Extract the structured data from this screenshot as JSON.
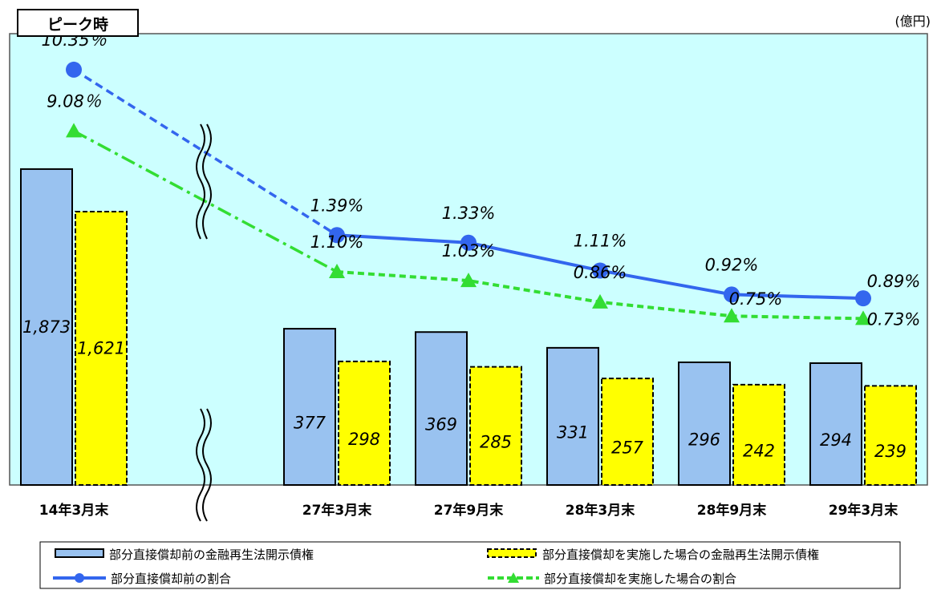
{
  "chart_data": {
    "type": "bar",
    "unit_label": "(億円)",
    "peak_label": "ピーク時",
    "categories": [
      "14年3月末",
      "27年3月末",
      "27年9月末",
      "28年3月末",
      "28年9月末",
      "29年3月末"
    ],
    "bars": [
      {
        "name": "部分直接償却前の金融再生法開示債権",
        "values": [
          1873,
          377,
          369,
          331,
          296,
          294
        ],
        "labels": [
          "1,873",
          "377",
          "369",
          "331",
          "296",
          "294"
        ],
        "color": "#99c2f0"
      },
      {
        "name": "部分直接償却を実施した場合の金融再生法開示債権",
        "values": [
          1621,
          298,
          285,
          257,
          242,
          239
        ],
        "labels": [
          "1,621",
          "298",
          "285",
          "257",
          "242",
          "239"
        ],
        "color": "#ffff00"
      }
    ],
    "lines": [
      {
        "name": "部分直接償却前の割合",
        "values": [
          10.35,
          1.39,
          1.33,
          1.11,
          0.92,
          0.89
        ],
        "labels": [
          "10.35％",
          "1.39%",
          "1.33%",
          "1.11%",
          "0.92%",
          "0.89%"
        ],
        "color": "#3366ee"
      },
      {
        "name": "部分直接償却を実施した場合の割合",
        "values": [
          9.08,
          1.1,
          1.03,
          0.86,
          0.75,
          0.73
        ],
        "labels": [
          "9.08％",
          "1.10%",
          "1.03%",
          "0.86%",
          "0.75%",
          "0.73%"
        ],
        "color": "#33dd33"
      }
    ],
    "axis_break_after_category": 0,
    "legend_position": "bottom"
  }
}
